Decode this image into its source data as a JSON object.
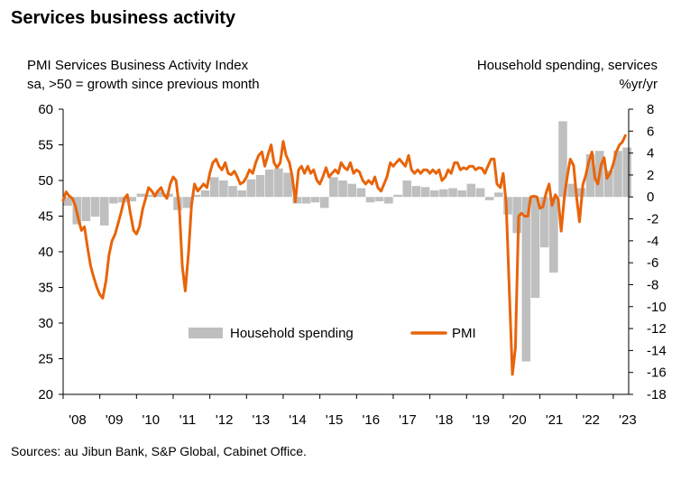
{
  "title": "Services business activity",
  "left_axis_title_line1": "PMI Services Business Activity Index",
  "left_axis_title_line2": "sa, >50 = growth since previous month",
  "right_axis_title_line1": "Household spending, services",
  "right_axis_title_line2": "%yr/yr",
  "source": "Sources: au Jibun Bank, S&P Global, Cabinet Office.",
  "colors": {
    "pmi": "#E8640A",
    "household": "#BFBFBF"
  },
  "chart_data": {
    "type": "bar+line",
    "x_ticks": [
      "'08",
      "'09",
      "'10",
      "'11",
      "'12",
      "'13",
      "'14",
      "'15",
      "'16",
      "'17",
      "'18",
      "'19",
      "'20",
      "'21",
      "'22",
      "'23"
    ],
    "left_axis": {
      "range": [
        20,
        60
      ],
      "ticks": [
        20,
        25,
        30,
        35,
        40,
        45,
        50,
        55,
        60
      ]
    },
    "right_axis": {
      "range": [
        -18,
        8
      ],
      "ticks": [
        -18,
        -16,
        -14,
        -12,
        -10,
        -8,
        -6,
        -4,
        -2,
        0,
        2,
        4,
        6,
        8
      ]
    },
    "legend": {
      "position": "bottom-center",
      "entries": [
        "Household spending",
        "PMI"
      ]
    },
    "series": [
      {
        "name": "Household spending",
        "kind": "bar",
        "axis": "right",
        "points": [
          [
            2008.0,
            -0.8
          ],
          [
            2008.25,
            -2.5
          ],
          [
            2008.5,
            -2.2
          ],
          [
            2008.75,
            -1.8
          ],
          [
            2009.0,
            -2.6
          ],
          [
            2009.25,
            -0.6
          ],
          [
            2009.5,
            -0.5
          ],
          [
            2009.75,
            -0.4
          ],
          [
            2010.0,
            0.3
          ],
          [
            2010.25,
            0.2
          ],
          [
            2010.5,
            0.5
          ],
          [
            2010.75,
            0.3
          ],
          [
            2011.0,
            -1.2
          ],
          [
            2011.25,
            -1.0
          ],
          [
            2011.5,
            0.2
          ],
          [
            2011.75,
            0.6
          ],
          [
            2012.0,
            1.8
          ],
          [
            2012.25,
            1.5
          ],
          [
            2012.5,
            1.0
          ],
          [
            2012.75,
            0.6
          ],
          [
            2013.0,
            1.6
          ],
          [
            2013.25,
            2.0
          ],
          [
            2013.5,
            2.5
          ],
          [
            2013.75,
            2.6
          ],
          [
            2014.0,
            2.2
          ],
          [
            2014.25,
            -0.6
          ],
          [
            2014.5,
            -0.6
          ],
          [
            2014.75,
            -0.5
          ],
          [
            2015.0,
            -1.0
          ],
          [
            2015.25,
            1.8
          ],
          [
            2015.5,
            1.5
          ],
          [
            2015.75,
            1.2
          ],
          [
            2016.0,
            0.8
          ],
          [
            2016.25,
            -0.5
          ],
          [
            2016.5,
            -0.4
          ],
          [
            2016.75,
            -0.6
          ],
          [
            2017.0,
            0.2
          ],
          [
            2017.25,
            1.5
          ],
          [
            2017.5,
            1.0
          ],
          [
            2017.75,
            0.9
          ],
          [
            2018.0,
            0.6
          ],
          [
            2018.25,
            0.7
          ],
          [
            2018.5,
            0.8
          ],
          [
            2018.75,
            0.6
          ],
          [
            2019.0,
            1.2
          ],
          [
            2019.25,
            0.8
          ],
          [
            2019.5,
            -0.3
          ],
          [
            2019.75,
            0.4
          ],
          [
            2020.0,
            -1.6
          ],
          [
            2020.25,
            -3.3
          ],
          [
            2020.5,
            -15.0
          ],
          [
            2020.75,
            -9.2
          ],
          [
            2021.0,
            -4.6
          ],
          [
            2021.25,
            -6.9
          ],
          [
            2021.5,
            6.9
          ],
          [
            2021.75,
            1.2
          ],
          [
            2022.0,
            0.8
          ],
          [
            2022.25,
            3.9
          ],
          [
            2022.5,
            4.2
          ],
          [
            2022.75,
            2.4
          ],
          [
            2023.0,
            4.2
          ],
          [
            2023.25,
            4.5
          ]
        ]
      },
      {
        "name": "PMI",
        "kind": "line",
        "axis": "left",
        "points": [
          [
            2008.0,
            47.2
          ],
          [
            2008.08,
            48.4
          ],
          [
            2008.17,
            47.8
          ],
          [
            2008.25,
            47.5
          ],
          [
            2008.33,
            46.5
          ],
          [
            2008.42,
            44.5
          ],
          [
            2008.5,
            43.0
          ],
          [
            2008.58,
            43.5
          ],
          [
            2008.67,
            40.5
          ],
          [
            2008.75,
            38.0
          ],
          [
            2008.83,
            36.5
          ],
          [
            2008.92,
            35.0
          ],
          [
            2009.0,
            34.0
          ],
          [
            2009.08,
            33.5
          ],
          [
            2009.17,
            36.0
          ],
          [
            2009.25,
            39.5
          ],
          [
            2009.33,
            41.5
          ],
          [
            2009.42,
            42.5
          ],
          [
            2009.5,
            44.0
          ],
          [
            2009.58,
            45.5
          ],
          [
            2009.67,
            47.5
          ],
          [
            2009.75,
            48.0
          ],
          [
            2009.83,
            45.5
          ],
          [
            2009.92,
            43.0
          ],
          [
            2010.0,
            42.5
          ],
          [
            2010.08,
            43.5
          ],
          [
            2010.17,
            46.0
          ],
          [
            2010.25,
            47.5
          ],
          [
            2010.33,
            49.0
          ],
          [
            2010.42,
            48.5
          ],
          [
            2010.5,
            47.8
          ],
          [
            2010.58,
            48.5
          ],
          [
            2010.67,
            49.0
          ],
          [
            2010.75,
            48.0
          ],
          [
            2010.83,
            47.5
          ],
          [
            2010.92,
            49.5
          ],
          [
            2011.0,
            50.5
          ],
          [
            2011.08,
            50.0
          ],
          [
            2011.17,
            46.0
          ],
          [
            2011.25,
            38.0
          ],
          [
            2011.33,
            34.5
          ],
          [
            2011.42,
            40.0
          ],
          [
            2011.5,
            46.5
          ],
          [
            2011.58,
            49.5
          ],
          [
            2011.67,
            48.5
          ],
          [
            2011.75,
            49.0
          ],
          [
            2011.83,
            49.5
          ],
          [
            2011.92,
            49.0
          ],
          [
            2012.0,
            51.0
          ],
          [
            2012.08,
            52.5
          ],
          [
            2012.17,
            53.0
          ],
          [
            2012.25,
            52.0
          ],
          [
            2012.33,
            51.5
          ],
          [
            2012.42,
            52.5
          ],
          [
            2012.5,
            51.0
          ],
          [
            2012.58,
            50.8
          ],
          [
            2012.67,
            51.3
          ],
          [
            2012.75,
            50.5
          ],
          [
            2012.83,
            49.5
          ],
          [
            2012.92,
            49.8
          ],
          [
            2013.0,
            50.5
          ],
          [
            2013.08,
            51.5
          ],
          [
            2013.17,
            51.0
          ],
          [
            2013.25,
            52.5
          ],
          [
            2013.33,
            53.5
          ],
          [
            2013.42,
            54.0
          ],
          [
            2013.5,
            52.0
          ],
          [
            2013.58,
            53.5
          ],
          [
            2013.67,
            55.0
          ],
          [
            2013.75,
            52.5
          ],
          [
            2013.83,
            51.8
          ],
          [
            2013.92,
            52.5
          ],
          [
            2014.0,
            55.5
          ],
          [
            2014.08,
            53.5
          ],
          [
            2014.17,
            52.5
          ],
          [
            2014.25,
            50.5
          ],
          [
            2014.33,
            47.0
          ],
          [
            2014.42,
            51.5
          ],
          [
            2014.5,
            52.0
          ],
          [
            2014.58,
            51.0
          ],
          [
            2014.67,
            52.0
          ],
          [
            2014.75,
            51.0
          ],
          [
            2014.83,
            51.5
          ],
          [
            2014.92,
            50.0
          ],
          [
            2015.0,
            49.5
          ],
          [
            2015.08,
            50.5
          ],
          [
            2015.17,
            51.8
          ],
          [
            2015.25,
            50.5
          ],
          [
            2015.33,
            51.0
          ],
          [
            2015.42,
            51.5
          ],
          [
            2015.5,
            51.0
          ],
          [
            2015.58,
            52.5
          ],
          [
            2015.67,
            51.8
          ],
          [
            2015.75,
            51.5
          ],
          [
            2015.83,
            52.5
          ],
          [
            2015.92,
            51.0
          ],
          [
            2016.0,
            51.5
          ],
          [
            2016.08,
            51.2
          ],
          [
            2016.17,
            50.0
          ],
          [
            2016.25,
            49.5
          ],
          [
            2016.33,
            50.0
          ],
          [
            2016.42,
            49.5
          ],
          [
            2016.5,
            50.5
          ],
          [
            2016.58,
            49.0
          ],
          [
            2016.67,
            48.5
          ],
          [
            2016.75,
            49.5
          ],
          [
            2016.83,
            50.5
          ],
          [
            2016.92,
            52.5
          ],
          [
            2017.0,
            52.0
          ],
          [
            2017.08,
            52.5
          ],
          [
            2017.17,
            53.0
          ],
          [
            2017.25,
            52.5
          ],
          [
            2017.33,
            52.0
          ],
          [
            2017.42,
            53.5
          ],
          [
            2017.5,
            51.5
          ],
          [
            2017.58,
            51.0
          ],
          [
            2017.67,
            51.5
          ],
          [
            2017.75,
            51.0
          ],
          [
            2017.83,
            51.5
          ],
          [
            2017.92,
            51.5
          ],
          [
            2018.0,
            51.0
          ],
          [
            2018.08,
            51.5
          ],
          [
            2018.17,
            51.0
          ],
          [
            2018.25,
            51.5
          ],
          [
            2018.33,
            50.0
          ],
          [
            2018.42,
            50.5
          ],
          [
            2018.5,
            51.5
          ],
          [
            2018.58,
            51.0
          ],
          [
            2018.67,
            52.5
          ],
          [
            2018.75,
            52.5
          ],
          [
            2018.83,
            51.5
          ],
          [
            2018.92,
            51.8
          ],
          [
            2019.0,
            51.6
          ],
          [
            2019.08,
            52.0
          ],
          [
            2019.17,
            52.0
          ],
          [
            2019.25,
            51.5
          ],
          [
            2019.33,
            51.8
          ],
          [
            2019.42,
            51.7
          ],
          [
            2019.5,
            51.0
          ],
          [
            2019.58,
            52.0
          ],
          [
            2019.67,
            53.0
          ],
          [
            2019.75,
            53.0
          ],
          [
            2019.83,
            49.5
          ],
          [
            2019.92,
            49.0
          ],
          [
            2020.0,
            51.0
          ],
          [
            2020.08,
            46.8
          ],
          [
            2020.17,
            33.8
          ],
          [
            2020.25,
            22.8
          ],
          [
            2020.33,
            26.5
          ],
          [
            2020.42,
            45.0
          ],
          [
            2020.5,
            45.4
          ],
          [
            2020.58,
            45.0
          ],
          [
            2020.67,
            45.0
          ],
          [
            2020.75,
            47.7
          ],
          [
            2020.83,
            47.8
          ],
          [
            2020.92,
            47.7
          ],
          [
            2021.0,
            46.1
          ],
          [
            2021.08,
            46.3
          ],
          [
            2021.17,
            48.3
          ],
          [
            2021.25,
            49.5
          ],
          [
            2021.33,
            46.5
          ],
          [
            2021.42,
            48.0
          ],
          [
            2021.5,
            47.4
          ],
          [
            2021.58,
            42.9
          ],
          [
            2021.67,
            47.8
          ],
          [
            2021.75,
            50.7
          ],
          [
            2021.83,
            53.0
          ],
          [
            2021.92,
            52.1
          ],
          [
            2022.0,
            47.6
          ],
          [
            2022.08,
            44.2
          ],
          [
            2022.17,
            49.4
          ],
          [
            2022.25,
            50.7
          ],
          [
            2022.33,
            52.6
          ],
          [
            2022.42,
            54.0
          ],
          [
            2022.5,
            50.3
          ],
          [
            2022.58,
            49.5
          ],
          [
            2022.67,
            52.2
          ],
          [
            2022.75,
            53.2
          ],
          [
            2022.83,
            50.3
          ],
          [
            2022.92,
            51.1
          ],
          [
            2023.0,
            52.3
          ],
          [
            2023.08,
            54.0
          ],
          [
            2023.17,
            55.0
          ],
          [
            2023.25,
            55.4
          ],
          [
            2023.33,
            56.3
          ]
        ]
      }
    ]
  }
}
